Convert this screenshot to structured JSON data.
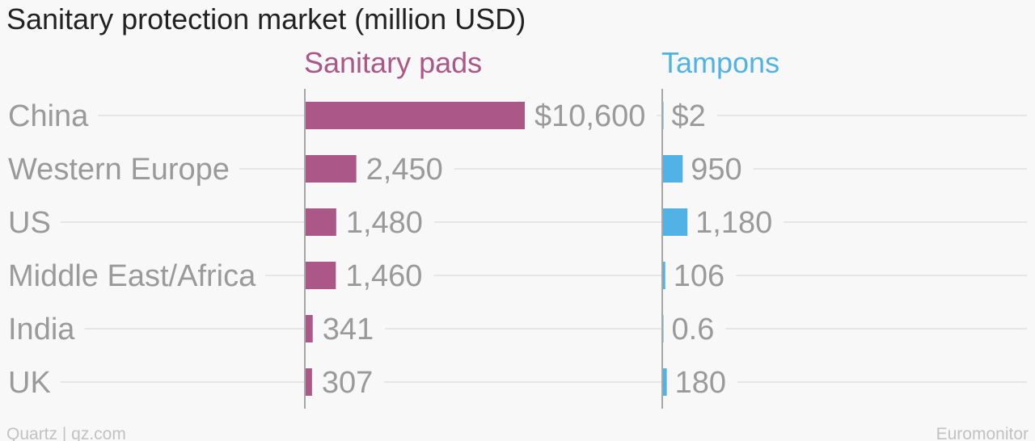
{
  "chart_data": {
    "type": "bar",
    "title": "Sanitary protection market (million USD)",
    "categories": [
      "China",
      "Western Europe",
      "US",
      "Middle East/Africa",
      "India",
      "UK"
    ],
    "series": [
      {
        "name": "Sanitary pads",
        "color": "#ab5787",
        "values": [
          10600,
          2450,
          1480,
          1460,
          341,
          307
        ],
        "labels": [
          "$10,600",
          "2,450",
          "1,480",
          "1,460",
          "341",
          "307"
        ]
      },
      {
        "name": "Tampons",
        "color": "#51b2e5",
        "values": [
          2,
          950,
          1180,
          106,
          0.6,
          180
        ],
        "labels": [
          "$2",
          "950",
          "1,180",
          "106",
          "0.6",
          "180"
        ]
      }
    ],
    "grid": true,
    "legend": "column-headers"
  },
  "footer": {
    "credit": "Quartz | qz.com",
    "source": "Euromonitor"
  }
}
